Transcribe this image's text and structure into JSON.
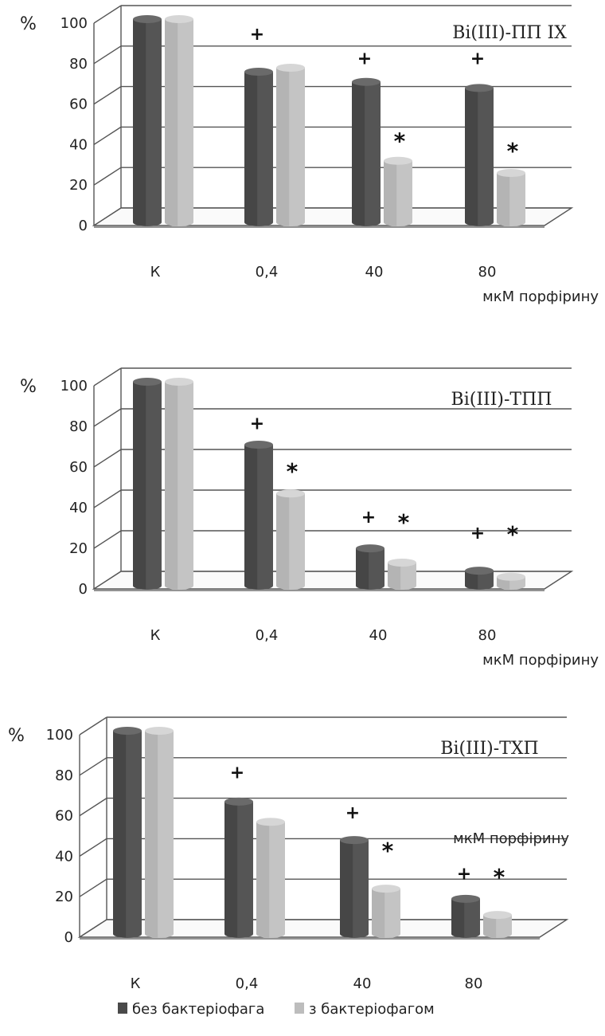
{
  "legend": [
    {
      "label": "без бактеріофага",
      "color": "#4a4a4a"
    },
    {
      "label": "з бактеріофагом",
      "color": "#bdbdbd"
    }
  ],
  "chart_data": [
    {
      "type": "bar",
      "title": "Bi(III)-ПП IX",
      "ylabel": "%",
      "xlabel": "мкМ порфірину",
      "categories": [
        "К",
        "0,4",
        "40",
        "80"
      ],
      "ylim": [
        0,
        100
      ],
      "yticks": [
        "0",
        "20",
        "40",
        "60",
        "80",
        "100"
      ],
      "grid": true,
      "series": [
        {
          "name": "без бактеріофага",
          "values": [
            100,
            74,
            69,
            66
          ]
        },
        {
          "name": "з бактеріофагом",
          "values": [
            100,
            76,
            30,
            24
          ]
        }
      ],
      "annotations": [
        {
          "category": 1,
          "symbol": "+",
          "y": 94
        },
        {
          "category": 2,
          "symbol": "+",
          "y": 82
        },
        {
          "category": 3,
          "symbol": "+",
          "y": 82
        },
        {
          "category": 2,
          "symbol": "*",
          "y": 42
        },
        {
          "category": 3,
          "symbol": "*",
          "y": 37
        }
      ]
    },
    {
      "type": "bar",
      "title": "Bi(III)-ТПП",
      "ylabel": "%",
      "xlabel": "мкМ порфірину",
      "categories": [
        "К",
        "0,4",
        "40",
        "80"
      ],
      "ylim": [
        0,
        100
      ],
      "yticks": [
        "0",
        "20",
        "40",
        "60",
        "80",
        "100"
      ],
      "grid": true,
      "series": [
        {
          "name": "без бактеріофага",
          "values": [
            100,
            69,
            18,
            7
          ]
        },
        {
          "name": "з бактеріофагом",
          "values": [
            100,
            45,
            11,
            4
          ]
        }
      ],
      "annotations": [
        {
          "category": 1,
          "symbol": "+",
          "y": 81
        },
        {
          "category": 2,
          "symbol": "+",
          "y": 35
        },
        {
          "category": 3,
          "symbol": "+",
          "y": 27
        },
        {
          "category": 1,
          "symbol": "*",
          "y": 58
        },
        {
          "category": 2,
          "symbol": "*",
          "y": 33
        },
        {
          "category": 3,
          "symbol": "*",
          "y": 27
        }
      ]
    },
    {
      "type": "bar",
      "title": "Bi(III)-ТХП",
      "ylabel": "%",
      "xlabel": "мкМ порфірину",
      "categories": [
        "К",
        "0,4",
        "40",
        "80"
      ],
      "ylim": [
        0,
        100
      ],
      "yticks": [
        "0",
        "20",
        "40",
        "60",
        "80",
        "100"
      ],
      "grid": true,
      "series": [
        {
          "name": "без бактеріофага",
          "values": [
            100,
            65,
            46,
            17
          ]
        },
        {
          "name": "з бактеріофагом",
          "values": [
            100,
            55,
            22,
            9
          ]
        }
      ],
      "annotations": [
        {
          "category": 1,
          "symbol": "+",
          "y": 81
        },
        {
          "category": 2,
          "symbol": "+",
          "y": 61
        },
        {
          "category": 3,
          "symbol": "+",
          "y": 31
        },
        {
          "category": 2,
          "symbol": "*",
          "y": 43
        },
        {
          "category": 3,
          "symbol": "*",
          "y": 30
        }
      ]
    }
  ]
}
